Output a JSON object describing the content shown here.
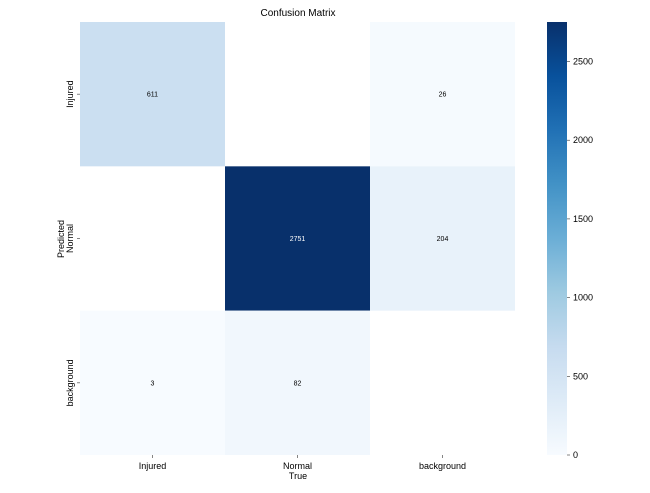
{
  "chart_data": {
    "type": "heatmap",
    "title": "Confusion Matrix",
    "xlabel": "True",
    "ylabel": "Predicted",
    "x_categories": [
      "Injured",
      "Normal",
      "background"
    ],
    "y_categories": [
      "Injured",
      "Normal",
      "background"
    ],
    "values": [
      [
        611,
        null,
        26
      ],
      [
        null,
        2751,
        204
      ],
      [
        3,
        82,
        null
      ]
    ],
    "zlim": [
      0,
      2751
    ],
    "zticks": [
      0,
      500,
      1000,
      1500,
      2000,
      2500
    ],
    "colormap": [
      "#f7fbff",
      "#deebf7",
      "#c6dbef",
      "#9ecae1",
      "#6baed6",
      "#4292c6",
      "#2171b5",
      "#08519c",
      "#08306b"
    ]
  }
}
